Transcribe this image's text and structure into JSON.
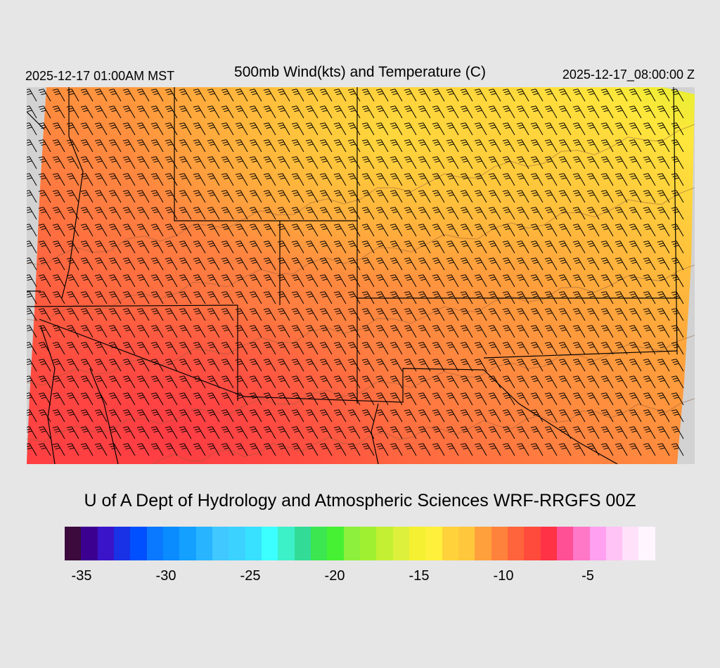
{
  "header": {
    "local_time": "2025-12-17 01:00AM MST",
    "title": "500mb Wind(kts) and Temperature (C)",
    "valid_time": "2025-12-17_08:00:00 Z"
  },
  "credit": "U of A Dept of Hydrology and Atmospheric Sciences WRF-RRGFS 00Z",
  "colorbar": {
    "colors": [
      "#3c0a3c",
      "#3c0090",
      "#3a14c8",
      "#1a32e6",
      "#0050ff",
      "#0a78ff",
      "#0a8cff",
      "#14a0ff",
      "#28b4ff",
      "#41c8ff",
      "#3cd2ff",
      "#37e1ff",
      "#3cffff",
      "#3cf0c8",
      "#32dc96",
      "#3ce650",
      "#46f032",
      "#8cf03c",
      "#a0f032",
      "#c3f032",
      "#dcf03c",
      "#f5f032",
      "#fff03c",
      "#ffd23c",
      "#ffc83c",
      "#ffa03c",
      "#ff823c",
      "#ff643c",
      "#ff4b3c",
      "#ff3246",
      "#ff5096",
      "#ff78c8",
      "#ffa0f0",
      "#ffc3f5",
      "#ffe1fa",
      "#fff5ff"
    ],
    "tick_labels": [
      "-35",
      "-30",
      "-25",
      "-20",
      "-15",
      "-10",
      "-5"
    ],
    "tick_values": [
      -35,
      -30,
      -25,
      -20,
      -15,
      -10,
      -5
    ],
    "min": -36,
    "max": -1
  },
  "map": {
    "region": "Southwestern United States",
    "wind_direction_deg": 330,
    "colors": {
      "warm_south": "#ff4646",
      "mid": "#ff8c3c",
      "north": "#ffb43c",
      "northeast": "#ffe63c",
      "far_northeast": "#e6f032",
      "missing": "#d2d2d2"
    }
  }
}
